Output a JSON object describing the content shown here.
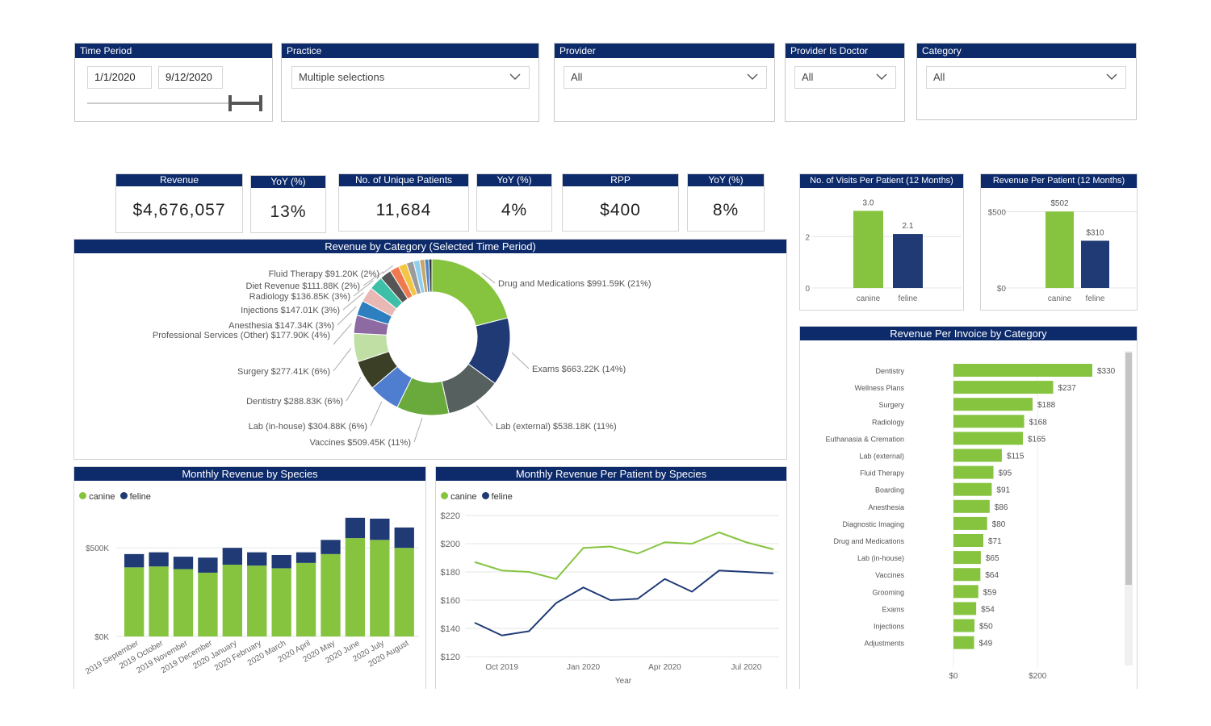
{
  "filters": {
    "time_period": {
      "label": "Time Period",
      "start": "1/1/2020",
      "end": "9/12/2020"
    },
    "practice": {
      "label": "Practice",
      "value": "Multiple selections"
    },
    "provider": {
      "label": "Provider",
      "value": "All"
    },
    "provider_is_doctor": {
      "label": "Provider Is Doctor",
      "value": "All"
    },
    "category": {
      "label": "Category",
      "value": "All"
    }
  },
  "kpis": {
    "revenue": {
      "label": "Revenue",
      "value": "$4,676,057"
    },
    "revenue_yoy": {
      "label": "YoY (%)",
      "value": "13%"
    },
    "patients": {
      "label": "No. of Unique Patients",
      "value": "11,684"
    },
    "patients_yoy": {
      "label": "YoY (%)",
      "value": "4%"
    },
    "rpp": {
      "label": "RPP",
      "value": "$400"
    },
    "rpp_yoy": {
      "label": "YoY (%)",
      "value": "8%"
    }
  },
  "colors": {
    "header": "#0d2b6b",
    "canine": "#86c440",
    "feline": "#1f3a75"
  },
  "legend": {
    "canine": "canine",
    "feline": "feline"
  },
  "chart_data": [
    {
      "id": "visits",
      "type": "bar",
      "title": "No. of Visits Per Patient (12 Months)",
      "categories": [
        "canine",
        "feline"
      ],
      "values": [
        3.0,
        2.1
      ],
      "value_labels": [
        "3.0",
        "2.1"
      ],
      "ylim": [
        0,
        3.2
      ],
      "yticks": [
        0,
        2
      ],
      "ytick_labels": [
        "0",
        "2"
      ]
    },
    {
      "id": "rpp12",
      "type": "bar",
      "title": "Revenue Per Patient (12 Months)",
      "categories": [
        "canine",
        "feline"
      ],
      "values": [
        502,
        310
      ],
      "value_labels": [
        "$502",
        "$310"
      ],
      "ylim": [
        0,
        540
      ],
      "yticks": [
        0,
        500
      ],
      "ytick_labels": [
        "$0",
        "$500"
      ]
    },
    {
      "id": "donut",
      "type": "pie",
      "title": "Revenue by Category (Selected Time Period)",
      "slices": [
        {
          "label": "Drug and Medications $991.59K (21%)",
          "value": 991.59,
          "color": "#86c440"
        },
        {
          "label": "Exams $663.22K (14%)",
          "value": 663.22,
          "color": "#1f3a75"
        },
        {
          "label": "Lab (external) $538.18K (11%)",
          "value": 538.18,
          "color": "#56605e"
        },
        {
          "label": "Vaccines $509.45K (11%)",
          "value": 509.45,
          "color": "#6aaa3c"
        },
        {
          "label": "Lab (in-house) $304.88K (6%)",
          "value": 304.88,
          "color": "#4f7ed0"
        },
        {
          "label": "Dentistry $288.83K (6%)",
          "value": 288.83,
          "color": "#3a3f26"
        },
        {
          "label": "Surgery $277.41K (6%)",
          "value": 277.41,
          "color": "#bfdfa5"
        },
        {
          "label": "Professional Services (Other) $177.90K (4%)",
          "value": 177.9,
          "color": "#8e6aa3"
        },
        {
          "label": "Anesthesia $147.34K (3%)",
          "value": 147.34,
          "color": "#2e7fbf"
        },
        {
          "label": "Injections $147.01K (3%)",
          "value": 147.01,
          "color": "#e9b8b4"
        },
        {
          "label": "Radiology $136.85K (3%)",
          "value": 136.85,
          "color": "#3dbfa8"
        },
        {
          "label": "Diet Revenue $111.88K (2%)",
          "value": 111.88,
          "color": "#555555"
        },
        {
          "label": "Fluid Therapy $91.20K (2%)",
          "value": 91.2,
          "color": "#f07a4f"
        },
        {
          "label": "",
          "value": 80,
          "color": "#f4c542"
        },
        {
          "label": "",
          "value": 70,
          "color": "#9b9b9b"
        },
        {
          "label": "",
          "value": 60,
          "color": "#8fd0f0"
        },
        {
          "label": "",
          "value": 50,
          "color": "#c9a66b"
        },
        {
          "label": "",
          "value": 40,
          "color": "#4a86c7"
        },
        {
          "label": "",
          "value": 30,
          "color": "#333333"
        }
      ]
    },
    {
      "id": "monthly",
      "type": "bar",
      "title": "Monthly Revenue by Species",
      "categories": [
        "2019 September",
        "2019 October",
        "2019 November",
        "2019 December",
        "2020 January",
        "2020 February",
        "2020 March",
        "2020 April",
        "2020 May",
        "2020 June",
        "2020 July",
        "2020 August"
      ],
      "series": [
        {
          "name": "canine",
          "values": [
            390,
            395,
            380,
            360,
            405,
            400,
            385,
            415,
            465,
            555,
            545,
            500
          ]
        },
        {
          "name": "feline",
          "values": [
            75,
            80,
            70,
            85,
            95,
            75,
            75,
            60,
            80,
            115,
            120,
            115
          ]
        }
      ],
      "ylim": [
        0,
        560
      ],
      "yticks": [
        0,
        500
      ],
      "ytick_labels": [
        "$0K",
        "$500K"
      ]
    },
    {
      "id": "rpp_monthly",
      "type": "line",
      "title": "Monthly Revenue Per Patient by Species",
      "x": [
        0,
        1,
        2,
        3,
        4,
        5,
        6,
        7,
        8,
        9,
        10,
        11
      ],
      "series": [
        {
          "name": "canine",
          "values": [
            187,
            181,
            180,
            175,
            197,
            198,
            193,
            201,
            200,
            208,
            201,
            196
          ]
        },
        {
          "name": "feline",
          "values": [
            144,
            135,
            138,
            158,
            169,
            160,
            161,
            175,
            166,
            181,
            180,
            179
          ]
        }
      ],
      "ylim": [
        120,
        220
      ],
      "yticks": [
        120,
        140,
        160,
        180,
        200,
        220
      ],
      "ytick_labels": [
        "$120",
        "$140",
        "$160",
        "$180",
        "$200",
        "$220"
      ],
      "xticks": [
        1,
        4,
        7,
        10
      ],
      "xtick_labels": [
        "Oct 2019",
        "Jan 2020",
        "Apr 2020",
        "Jul 2020"
      ],
      "xlabel": "Year"
    },
    {
      "id": "invoice",
      "type": "bar",
      "orientation": "horizontal",
      "title": "Revenue Per Invoice by  Category",
      "categories": [
        "Dentistry",
        "Wellness Plans",
        "Surgery",
        "Radiology",
        "Euthanasia & Cremation",
        "Lab (external)",
        "Fluid Therapy",
        "Boarding",
        "Anesthesia",
        "Diagnostic Imaging",
        "Drug and Medications",
        "Lab (in-house)",
        "Vaccines",
        "Grooming",
        "Exams",
        "Injections",
        "Adjustments"
      ],
      "values": [
        330,
        237,
        188,
        168,
        165,
        115,
        95,
        91,
        86,
        80,
        71,
        65,
        64,
        59,
        54,
        50,
        49
      ],
      "value_labels": [
        "$330",
        "$237",
        "$188",
        "$168",
        "$165",
        "$115",
        "$95",
        "$91",
        "$86",
        "$80",
        "$71",
        "$65",
        "$64",
        "$59",
        "$54",
        "$50",
        "$49"
      ],
      "xlim": [
        0,
        330
      ],
      "xticks": [
        0,
        200
      ],
      "xtick_labels": [
        "$0",
        "$200"
      ]
    }
  ]
}
